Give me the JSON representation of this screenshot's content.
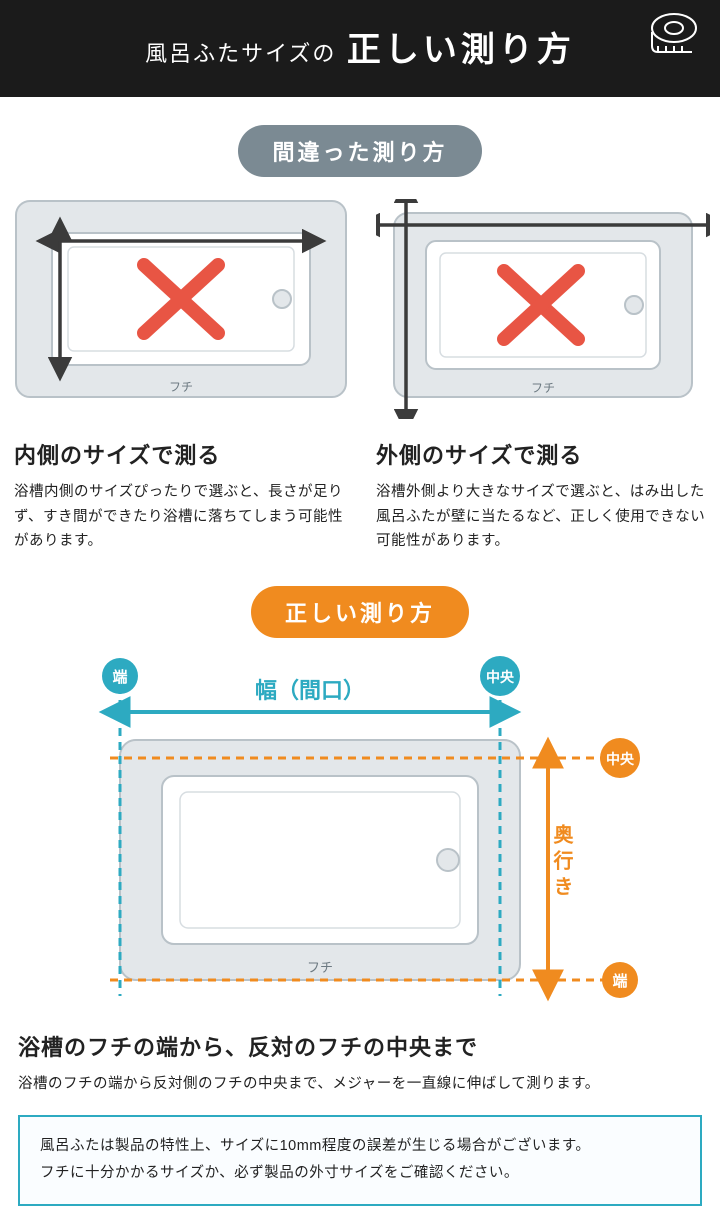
{
  "colors": {
    "header_bg": "#1b1b1b",
    "wrong_pill": "#7b8a93",
    "correct_pill": "#f08b1f",
    "teal": "#2daac1",
    "orange": "#f08b1f",
    "red_x": "#e85544",
    "tub_fill": "#e3e7ea",
    "tub_stroke": "#b9c2c8",
    "arrow_dark": "#3b3b3b",
    "note_border": "#2daac1",
    "text": "#222222"
  },
  "header": {
    "small": "風呂ふたサイズの",
    "big": "正しい測り方"
  },
  "wrong": {
    "pill": "間違った測り方",
    "fuchi_label": "フチ",
    "left": {
      "title": "内側のサイズで測る",
      "para": "浴槽内側のサイズぴったりで選ぶと、長さが足りず、すき間ができたり浴槽に落ちてしまう可能性があります。"
    },
    "right": {
      "title": "外側のサイズで測る",
      "para": "浴槽外側より大きなサイズで選ぶと、はみ出した風呂ふたが壁に当たるなど、正しく使用できない可能性があります。"
    }
  },
  "correct": {
    "pill": "正しい測り方",
    "width_label": "幅（間口）",
    "depth_label": "奥行き",
    "end_label": "端",
    "center_label": "中央",
    "fuchi_label": "フチ",
    "title": "浴槽のフチの端から、反対のフチの中央まで",
    "para": "浴槽のフチの端から反対側のフチの中央まで、メジャーを一直線に伸ばして測ります。"
  },
  "note": {
    "line1": "風呂ふたは製品の特性上、サイズに10mm程度の誤差が生じる場合がございます。",
    "line2": "フチに十分かかるサイズか、必ず製品の外寸サイズをご確認ください。"
  },
  "diagram": {
    "tub_rx": 14,
    "arrow_stroke_w": 3.5,
    "x_stroke_w": 14,
    "dash": "8 6"
  }
}
